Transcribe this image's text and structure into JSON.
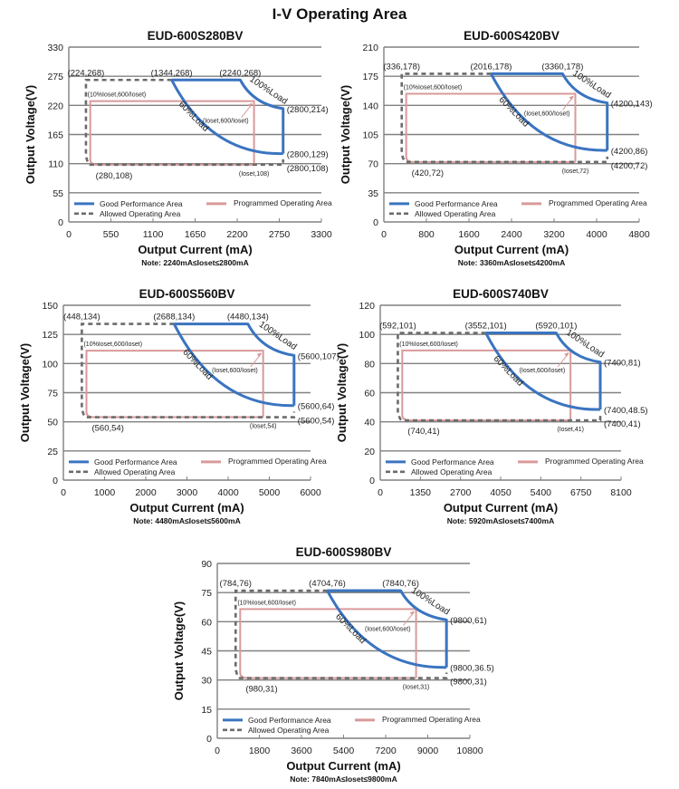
{
  "page_title": "I-V Operating Area",
  "colors": {
    "good": "#3a74c0",
    "programmed": "#d99a9a",
    "allowed": "#6b6b6b",
    "grid": "#808080"
  },
  "legend": {
    "good": "Good Performance Area",
    "programmed": "Programmed Operating Area",
    "allowed": "Allowed Operating Area"
  },
  "load_labels": {
    "full": "100%Load",
    "partial": "60%Load"
  },
  "chart_data": [
    {
      "type": "line",
      "title": "EUD-600S280BV",
      "xlabel": "Output Current (mA)",
      "ylabel": "Output Voltage(V)",
      "note": "Note:  2240mA≤Ioset≤2800mA",
      "xlim": [
        0,
        3300
      ],
      "ylim": [
        0,
        330
      ],
      "xticks": [
        0,
        550,
        1100,
        1650,
        2200,
        2750,
        3300
      ],
      "yticks": [
        0,
        55,
        110,
        165,
        220,
        275,
        330
      ],
      "grid": true,
      "legend_position": "bottom-inside",
      "allowed": [
        [
          2800,
          108
        ],
        [
          280,
          108
        ],
        [
          224,
          268
        ],
        [
          1344,
          268
        ]
      ],
      "good_top": [
        [
          1344,
          268
        ],
        [
          2240,
          268
        ]
      ],
      "good_100": [
        [
          2240,
          268
        ],
        [
          2800,
          214
        ]
      ],
      "good_60": [
        [
          1344,
          268
        ],
        [
          2800,
          129
        ]
      ],
      "good_right": [
        [
          2800,
          214
        ],
        [
          2800,
          129
        ]
      ],
      "programmed": {
        "x0": 280,
        "x1": 2420,
        "y_top": 228,
        "y_bottom": 108
      },
      "labels": [
        {
          "text": "(224,268)",
          "x": 224,
          "y": 268,
          "pos": "above"
        },
        {
          "text": "(1344,268)",
          "x": 1344,
          "y": 268,
          "pos": "above"
        },
        {
          "text": "(2240,268)",
          "x": 2240,
          "y": 268,
          "pos": "above"
        },
        {
          "text": "(2800,214)",
          "x": 2800,
          "y": 214,
          "pos": "right"
        },
        {
          "text": "(2800,129)",
          "x": 2800,
          "y": 129,
          "pos": "right"
        },
        {
          "text": "(2800,108)",
          "x": 2800,
          "y": 108,
          "pos": "right-below"
        },
        {
          "text": "(280,108)",
          "x": 280,
          "y": 108,
          "pos": "below"
        },
        {
          "text": "(Ioset,108)",
          "x": 2420,
          "y": 108,
          "pos": "below-small"
        },
        {
          "text": "(10%Ioset,600/Ioset)",
          "x": 280,
          "y": 228,
          "pos": "above-small"
        },
        {
          "text": "(Ioset,600/Ioset)",
          "x": 2420,
          "y": 228,
          "pos": "below-left-small"
        }
      ]
    },
    {
      "type": "line",
      "title": "EUD-600S420BV",
      "xlabel": "Output Current (mA)",
      "ylabel": "Output Voltage(V)",
      "note": "Note:  3360mA≤Ioset≤4200mA",
      "xlim": [
        0,
        4800
      ],
      "ylim": [
        0,
        210
      ],
      "xticks": [
        0,
        800,
        1600,
        2400,
        3200,
        4000,
        4800
      ],
      "yticks": [
        0,
        35,
        70,
        105,
        140,
        175,
        210
      ],
      "grid": true,
      "legend_position": "bottom-inside",
      "allowed": [
        [
          4200,
          72
        ],
        [
          420,
          72
        ],
        [
          336,
          178
        ],
        [
          2016,
          178
        ]
      ],
      "good_top": [
        [
          2016,
          178
        ],
        [
          3360,
          178
        ]
      ],
      "good_100": [
        [
          3360,
          178
        ],
        [
          4200,
          143
        ]
      ],
      "good_60": [
        [
          2016,
          178
        ],
        [
          4200,
          86
        ]
      ],
      "good_right": [
        [
          4200,
          143
        ],
        [
          4200,
          86
        ]
      ],
      "programmed": {
        "x0": 420,
        "x1": 3600,
        "y_top": 154,
        "y_bottom": 72
      },
      "labels": [
        {
          "text": "(336,178)",
          "x": 336,
          "y": 178,
          "pos": "above"
        },
        {
          "text": "(2016,178)",
          "x": 2016,
          "y": 178,
          "pos": "above"
        },
        {
          "text": "(3360,178)",
          "x": 3360,
          "y": 178,
          "pos": "above"
        },
        {
          "text": "(4200,143)",
          "x": 4200,
          "y": 143,
          "pos": "right"
        },
        {
          "text": "(4200,86)",
          "x": 4200,
          "y": 86,
          "pos": "right"
        },
        {
          "text": "(4200,72)",
          "x": 4200,
          "y": 72,
          "pos": "right-below"
        },
        {
          "text": "(420,72)",
          "x": 420,
          "y": 72,
          "pos": "below"
        },
        {
          "text": "(Ioset,72)",
          "x": 3600,
          "y": 72,
          "pos": "below-small"
        },
        {
          "text": "(10%Ioset,600/Ioset)",
          "x": 420,
          "y": 154,
          "pos": "above-small"
        },
        {
          "text": "(Ioset,600/Ioset)",
          "x": 3600,
          "y": 154,
          "pos": "below-left-small"
        }
      ]
    },
    {
      "type": "line",
      "title": "EUD-600S560BV",
      "xlabel": "Output Current (mA)",
      "ylabel": "Output Voltage(V)",
      "note": "Note:  4480mA≤Ioset≤5600mA",
      "xlim": [
        0,
        6000
      ],
      "ylim": [
        0,
        150
      ],
      "xticks": [
        0,
        1000,
        2000,
        3000,
        4000,
        5000,
        6000
      ],
      "yticks": [
        0,
        25,
        50,
        75,
        100,
        125,
        150
      ],
      "grid": true,
      "legend_position": "bottom-inside",
      "allowed": [
        [
          5600,
          54
        ],
        [
          560,
          54
        ],
        [
          448,
          134
        ],
        [
          2688,
          134
        ]
      ],
      "good_top": [
        [
          2688,
          134
        ],
        [
          4480,
          134
        ]
      ],
      "good_100": [
        [
          4480,
          134
        ],
        [
          5600,
          107
        ]
      ],
      "good_60": [
        [
          2688,
          134
        ],
        [
          5600,
          64
        ]
      ],
      "good_right": [
        [
          5600,
          107
        ],
        [
          5600,
          64
        ]
      ],
      "programmed": {
        "x0": 560,
        "x1": 4850,
        "y_top": 111,
        "y_bottom": 54
      },
      "labels": [
        {
          "text": "(448,134)",
          "x": 448,
          "y": 134,
          "pos": "above"
        },
        {
          "text": "(2688,134)",
          "x": 2688,
          "y": 134,
          "pos": "above"
        },
        {
          "text": "(4480,134)",
          "x": 4480,
          "y": 134,
          "pos": "above"
        },
        {
          "text": "(5600,107)",
          "x": 5600,
          "y": 107,
          "pos": "right"
        },
        {
          "text": "(5600,64)",
          "x": 5600,
          "y": 64,
          "pos": "right"
        },
        {
          "text": "(5600,54)",
          "x": 5600,
          "y": 54,
          "pos": "right-below"
        },
        {
          "text": "(560,54)",
          "x": 560,
          "y": 54,
          "pos": "below"
        },
        {
          "text": "(Ioset,54)",
          "x": 4850,
          "y": 54,
          "pos": "below-small"
        },
        {
          "text": "(10%Ioset,600/Ioset)",
          "x": 560,
          "y": 111,
          "pos": "above-small"
        },
        {
          "text": "(Ioset,600/Ioset)",
          "x": 4850,
          "y": 111,
          "pos": "below-left-small"
        }
      ]
    },
    {
      "type": "line",
      "title": "EUD-600S740BV",
      "xlabel": "Output Current (mA)",
      "ylabel": "Output Voltage(V)",
      "note": "Note:  5920mA≤Ioset≤7400mA",
      "xlim": [
        0,
        8100
      ],
      "ylim": [
        0,
        120
      ],
      "xticks": [
        0,
        1350,
        2700,
        4050,
        5400,
        6750,
        8100
      ],
      "yticks": [
        0,
        20,
        40,
        60,
        80,
        100,
        120
      ],
      "grid": true,
      "legend_position": "bottom-inside",
      "allowed": [
        [
          7400,
          41
        ],
        [
          740,
          41
        ],
        [
          592,
          101
        ],
        [
          3552,
          101
        ]
      ],
      "good_top": [
        [
          3552,
          101
        ],
        [
          5920,
          101
        ]
      ],
      "good_100": [
        [
          5920,
          101
        ],
        [
          7400,
          81
        ]
      ],
      "good_60": [
        [
          3552,
          101
        ],
        [
          7400,
          48.5
        ]
      ],
      "good_right": [
        [
          7400,
          81
        ],
        [
          7400,
          48.5
        ]
      ],
      "programmed": {
        "x0": 740,
        "x1": 6400,
        "y_top": 89,
        "y_bottom": 41
      },
      "labels": [
        {
          "text": "(592,101)",
          "x": 592,
          "y": 101,
          "pos": "above"
        },
        {
          "text": "(3552,101)",
          "x": 3552,
          "y": 101,
          "pos": "above"
        },
        {
          "text": "(5920,101)",
          "x": 5920,
          "y": 101,
          "pos": "above"
        },
        {
          "text": "(7400,81)",
          "x": 7400,
          "y": 81,
          "pos": "right"
        },
        {
          "text": "(7400,48.5)",
          "x": 7400,
          "y": 48.5,
          "pos": "right"
        },
        {
          "text": "(7400,41)",
          "x": 7400,
          "y": 41,
          "pos": "right-below"
        },
        {
          "text": "(740,41)",
          "x": 740,
          "y": 41,
          "pos": "below"
        },
        {
          "text": "(Ioset,41)",
          "x": 6400,
          "y": 41,
          "pos": "below-small"
        },
        {
          "text": "(10%Ioset,600/Ioset)",
          "x": 740,
          "y": 89,
          "pos": "above-small"
        },
        {
          "text": "(Ioset,600/Ioset)",
          "x": 6400,
          "y": 89,
          "pos": "below-left-small"
        }
      ]
    },
    {
      "type": "line",
      "title": "EUD-600S980BV",
      "xlabel": "Output Current (mA)",
      "ylabel": "Output Voltage(V)",
      "note": "Note:  7840mA≤Ioset≤9800mA",
      "xlim": [
        0,
        10800
      ],
      "ylim": [
        0,
        90
      ],
      "xticks": [
        0,
        1800,
        3600,
        5400,
        7200,
        9000,
        10800
      ],
      "yticks": [
        0,
        15,
        30,
        45,
        60,
        75,
        90
      ],
      "grid": true,
      "legend_position": "bottom-inside",
      "allowed": [
        [
          9800,
          31
        ],
        [
          980,
          31
        ],
        [
          784,
          76
        ],
        [
          4704,
          76
        ]
      ],
      "good_top": [
        [
          4704,
          76
        ],
        [
          7840,
          76
        ]
      ],
      "good_100": [
        [
          7840,
          76
        ],
        [
          9800,
          61
        ]
      ],
      "good_60": [
        [
          4704,
          76
        ],
        [
          9800,
          36.5
        ]
      ],
      "good_right": [
        [
          9800,
          61
        ],
        [
          9800,
          36.5
        ]
      ],
      "programmed": {
        "x0": 980,
        "x1": 8500,
        "y_top": 66.5,
        "y_bottom": 31
      },
      "labels": [
        {
          "text": "(784,76)",
          "x": 784,
          "y": 76,
          "pos": "above"
        },
        {
          "text": "(4704,76)",
          "x": 4704,
          "y": 76,
          "pos": "above"
        },
        {
          "text": "(7840,76)",
          "x": 7840,
          "y": 76,
          "pos": "above"
        },
        {
          "text": "(9800,61)",
          "x": 9800,
          "y": 61,
          "pos": "right"
        },
        {
          "text": "(9800,36.5)",
          "x": 9800,
          "y": 36.5,
          "pos": "right"
        },
        {
          "text": "(9800,31)",
          "x": 9800,
          "y": 31,
          "pos": "right-below"
        },
        {
          "text": "(980,31)",
          "x": 980,
          "y": 31,
          "pos": "below"
        },
        {
          "text": "(Ioset,31)",
          "x": 8500,
          "y": 31,
          "pos": "below-small"
        },
        {
          "text": "(10%Ioset,600/Ioset)",
          "x": 980,
          "y": 66.5,
          "pos": "above-small"
        },
        {
          "text": "(Ioset,600/Ioset)",
          "x": 8500,
          "y": 66.5,
          "pos": "below-left-small"
        }
      ]
    }
  ]
}
